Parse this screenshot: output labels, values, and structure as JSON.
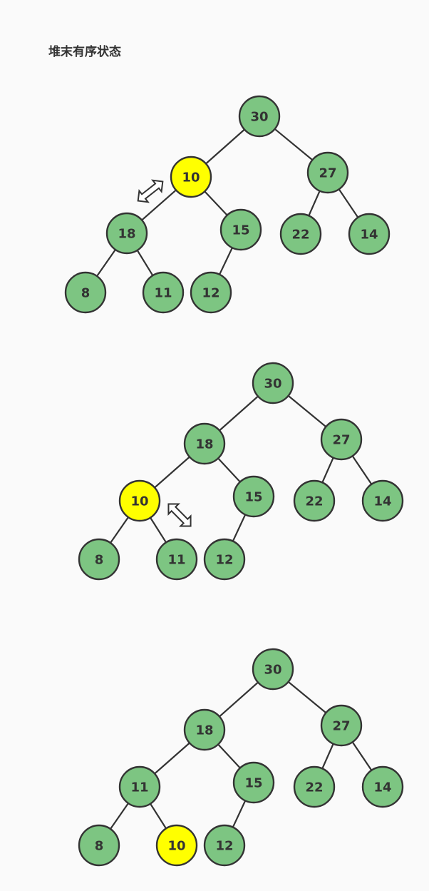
{
  "title": "堆末有序状态",
  "colors": {
    "node_default": "#7dc582",
    "node_highlight": "#ffff00",
    "stroke": "#333333"
  },
  "diagrams": [
    {
      "nodes": [
        {
          "id": "n30",
          "label": "30",
          "highlight": false
        },
        {
          "id": "n10",
          "label": "10",
          "highlight": true
        },
        {
          "id": "n27",
          "label": "27",
          "highlight": false
        },
        {
          "id": "n18",
          "label": "18",
          "highlight": false
        },
        {
          "id": "n15",
          "label": "15",
          "highlight": false
        },
        {
          "id": "n22",
          "label": "22",
          "highlight": false
        },
        {
          "id": "n14",
          "label": "14",
          "highlight": false
        },
        {
          "id": "n8",
          "label": "8",
          "highlight": false
        },
        {
          "id": "n11",
          "label": "11",
          "highlight": false
        },
        {
          "id": "n12",
          "label": "12",
          "highlight": false
        }
      ],
      "edges": [
        [
          "n30",
          "n10"
        ],
        [
          "n30",
          "n27"
        ],
        [
          "n10",
          "n18"
        ],
        [
          "n10",
          "n15"
        ],
        [
          "n27",
          "n22"
        ],
        [
          "n27",
          "n14"
        ],
        [
          "n18",
          "n8"
        ],
        [
          "n18",
          "n11"
        ],
        [
          "n15",
          "n12"
        ]
      ],
      "swap_arrow": {
        "icon": "double-arrow-icon",
        "between": [
          "n10",
          "n18"
        ]
      }
    },
    {
      "nodes": [
        {
          "id": "n30",
          "label": "30",
          "highlight": false
        },
        {
          "id": "n18",
          "label": "18",
          "highlight": false
        },
        {
          "id": "n27",
          "label": "27",
          "highlight": false
        },
        {
          "id": "n10",
          "label": "10",
          "highlight": true
        },
        {
          "id": "n15",
          "label": "15",
          "highlight": false
        },
        {
          "id": "n22",
          "label": "22",
          "highlight": false
        },
        {
          "id": "n14",
          "label": "14",
          "highlight": false
        },
        {
          "id": "n8",
          "label": "8",
          "highlight": false
        },
        {
          "id": "n11",
          "label": "11",
          "highlight": false
        },
        {
          "id": "n12",
          "label": "12",
          "highlight": false
        }
      ],
      "edges": [
        [
          "n30",
          "n18"
        ],
        [
          "n30",
          "n27"
        ],
        [
          "n18",
          "n10"
        ],
        [
          "n18",
          "n15"
        ],
        [
          "n27",
          "n22"
        ],
        [
          "n27",
          "n14"
        ],
        [
          "n10",
          "n8"
        ],
        [
          "n10",
          "n11"
        ],
        [
          "n15",
          "n12"
        ]
      ],
      "swap_arrow": {
        "icon": "double-arrow-icon",
        "between": [
          "n10",
          "n11"
        ]
      }
    },
    {
      "nodes": [
        {
          "id": "n30",
          "label": "30",
          "highlight": false
        },
        {
          "id": "n18",
          "label": "18",
          "highlight": false
        },
        {
          "id": "n27",
          "label": "27",
          "highlight": false
        },
        {
          "id": "n11",
          "label": "11",
          "highlight": false
        },
        {
          "id": "n15",
          "label": "15",
          "highlight": false
        },
        {
          "id": "n22",
          "label": "22",
          "highlight": false
        },
        {
          "id": "n14",
          "label": "14",
          "highlight": false
        },
        {
          "id": "n8",
          "label": "8",
          "highlight": false
        },
        {
          "id": "n10",
          "label": "10",
          "highlight": true
        },
        {
          "id": "n12",
          "label": "12",
          "highlight": false
        }
      ],
      "edges": [
        [
          "n30",
          "n18"
        ],
        [
          "n30",
          "n27"
        ],
        [
          "n18",
          "n11"
        ],
        [
          "n18",
          "n15"
        ],
        [
          "n27",
          "n22"
        ],
        [
          "n27",
          "n14"
        ],
        [
          "n11",
          "n8"
        ],
        [
          "n11",
          "n10"
        ],
        [
          "n15",
          "n12"
        ]
      ],
      "swap_arrow": null
    }
  ]
}
